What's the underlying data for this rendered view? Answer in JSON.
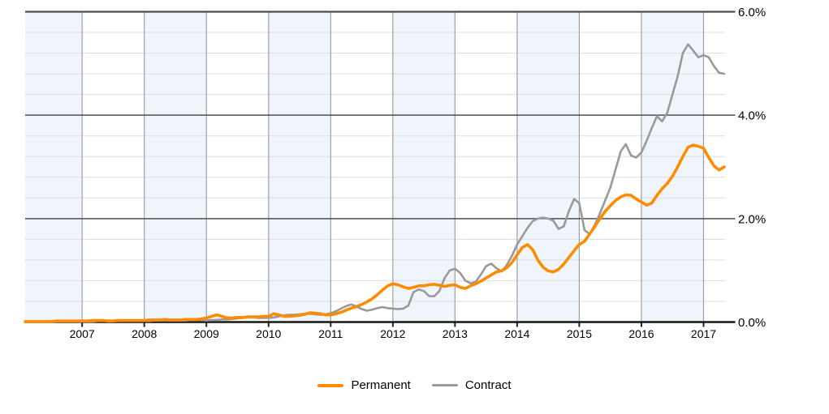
{
  "page": {
    "background": "#ffffff"
  },
  "chart_data": {
    "type": "line",
    "title": "",
    "x_start": "2006-02",
    "x_end": "2017-05",
    "interval": "monthly",
    "grid": "on",
    "legend_position": "bottom-center",
    "x_axis": {
      "ticks": [
        {
          "year": 2007,
          "label": "2007"
        },
        {
          "year": 2008,
          "label": "2008"
        },
        {
          "year": 2009,
          "label": "2009"
        },
        {
          "year": 2010,
          "label": "2010"
        },
        {
          "year": 2011,
          "label": "2011"
        },
        {
          "year": 2012,
          "label": "2012"
        },
        {
          "year": 2013,
          "label": "2013"
        },
        {
          "year": 2014,
          "label": "2014"
        },
        {
          "year": 2015,
          "label": "2015"
        },
        {
          "year": 2016,
          "label": "2016"
        },
        {
          "year": 2017,
          "label": "2017"
        }
      ]
    },
    "y_axis": {
      "min": 0,
      "max": 6,
      "major_step": 2,
      "minor_step": 0.4,
      "unit": "%",
      "ticks": [
        {
          "value": 6,
          "label": "6.0%"
        },
        {
          "value": 4,
          "label": "4.0%"
        },
        {
          "value": 2,
          "label": "2.0%"
        },
        {
          "value": 0,
          "label": "0.0%"
        }
      ]
    },
    "series": [
      {
        "name": "Permanent",
        "color": "#ff8c00",
        "values": [
          0.01,
          0.01,
          0.01,
          0.01,
          0.01,
          0.01,
          0.02,
          0.02,
          0.02,
          0.02,
          0.02,
          0.02,
          0.02,
          0.03,
          0.03,
          0.03,
          0.02,
          0.02,
          0.03,
          0.03,
          0.03,
          0.03,
          0.03,
          0.03,
          0.04,
          0.04,
          0.04,
          0.05,
          0.04,
          0.04,
          0.04,
          0.05,
          0.05,
          0.05,
          0.06,
          0.08,
          0.11,
          0.14,
          0.11,
          0.08,
          0.08,
          0.09,
          0.09,
          0.1,
          0.1,
          0.1,
          0.11,
          0.11,
          0.16,
          0.14,
          0.11,
          0.11,
          0.12,
          0.13,
          0.15,
          0.18,
          0.17,
          0.16,
          0.14,
          0.14,
          0.16,
          0.19,
          0.23,
          0.27,
          0.3,
          0.34,
          0.39,
          0.45,
          0.53,
          0.62,
          0.7,
          0.74,
          0.72,
          0.68,
          0.65,
          0.67,
          0.7,
          0.7,
          0.72,
          0.73,
          0.71,
          0.69,
          0.71,
          0.72,
          0.67,
          0.65,
          0.7,
          0.74,
          0.79,
          0.85,
          0.91,
          0.97,
          0.99,
          1.05,
          1.15,
          1.3,
          1.44,
          1.5,
          1.4,
          1.2,
          1.06,
          0.99,
          0.97,
          1.02,
          1.12,
          1.25,
          1.38,
          1.5,
          1.56,
          1.7,
          1.85,
          2.0,
          2.14,
          2.25,
          2.35,
          2.42,
          2.46,
          2.45,
          2.38,
          2.32,
          2.26,
          2.3,
          2.45,
          2.58,
          2.68,
          2.82,
          3.0,
          3.2,
          3.38,
          3.42,
          3.4,
          3.36,
          3.18,
          3.02,
          2.94,
          3.0
        ]
      },
      {
        "name": "Contract",
        "color": "#999999",
        "values": [
          0.0,
          0.0,
          0.0,
          0.0,
          0.0,
          0.01,
          0.01,
          0.01,
          0.01,
          0.01,
          0.01,
          0.01,
          0.01,
          0.01,
          0.02,
          0.02,
          0.02,
          0.02,
          0.02,
          0.02,
          0.02,
          0.02,
          0.02,
          0.02,
          0.02,
          0.03,
          0.03,
          0.03,
          0.03,
          0.03,
          0.03,
          0.03,
          0.04,
          0.04,
          0.04,
          0.03,
          0.04,
          0.04,
          0.05,
          0.05,
          0.06,
          0.07,
          0.08,
          0.09,
          0.09,
          0.08,
          0.08,
          0.08,
          0.09,
          0.11,
          0.13,
          0.14,
          0.14,
          0.15,
          0.16,
          0.16,
          0.15,
          0.14,
          0.15,
          0.17,
          0.21,
          0.26,
          0.31,
          0.34,
          0.3,
          0.25,
          0.22,
          0.24,
          0.27,
          0.29,
          0.27,
          0.26,
          0.25,
          0.26,
          0.32,
          0.58,
          0.63,
          0.6,
          0.5,
          0.5,
          0.6,
          0.85,
          1.0,
          1.03,
          0.95,
          0.8,
          0.75,
          0.78,
          0.92,
          1.08,
          1.13,
          1.04,
          0.98,
          1.1,
          1.28,
          1.5,
          1.66,
          1.82,
          1.95,
          2.0,
          2.02,
          2.0,
          1.96,
          1.8,
          1.85,
          2.15,
          2.38,
          2.3,
          1.78,
          1.7,
          1.88,
          2.1,
          2.35,
          2.6,
          2.95,
          3.3,
          3.44,
          3.22,
          3.18,
          3.28,
          3.5,
          3.75,
          3.98,
          3.88,
          4.05,
          4.4,
          4.75,
          5.2,
          5.37,
          5.25,
          5.12,
          5.16,
          5.12,
          4.95,
          4.82,
          4.8
        ]
      }
    ],
    "style": {
      "band_fill": "#f0f5fb",
      "minor_grid_color": "#dadee3",
      "year_grid_color": "#9aa1a8",
      "major_grid_color": "#4d4d4d",
      "axis_color": "#161616",
      "label_color": "#000000"
    }
  },
  "legend": {
    "items": [
      {
        "label": "Permanent",
        "color": "#ff8c00"
      },
      {
        "label": "Contract",
        "color": "#999999"
      }
    ]
  }
}
